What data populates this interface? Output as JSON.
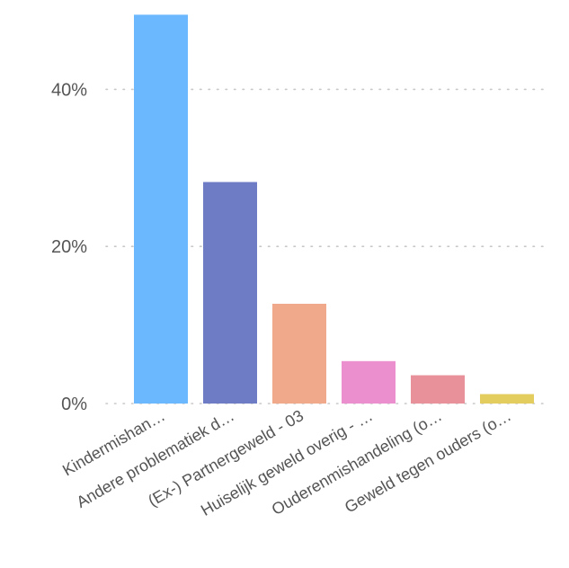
{
  "chart_data": {
    "type": "bar",
    "categories": [
      "Kindermishan…",
      "Andere problematiek d…",
      "(Ex-) Partnergeweld - 03",
      "Huiselijk geweld overig - …",
      "Ouderenmishandeling (o…",
      "Geweld tegen ouders (o…"
    ],
    "values": [
      49.5,
      28.2,
      12.7,
      5.4,
      3.6,
      1.2
    ],
    "colors": [
      "#6cb8ff",
      "#6e7cc6",
      "#f0a98a",
      "#ec8fcf",
      "#e8919a",
      "#e3cd5e"
    ],
    "ylim": [
      0,
      50
    ],
    "yticks": [
      0,
      20,
      40
    ],
    "ytick_labels": [
      "0%",
      "20%",
      "40%"
    ],
    "grid": true
  }
}
